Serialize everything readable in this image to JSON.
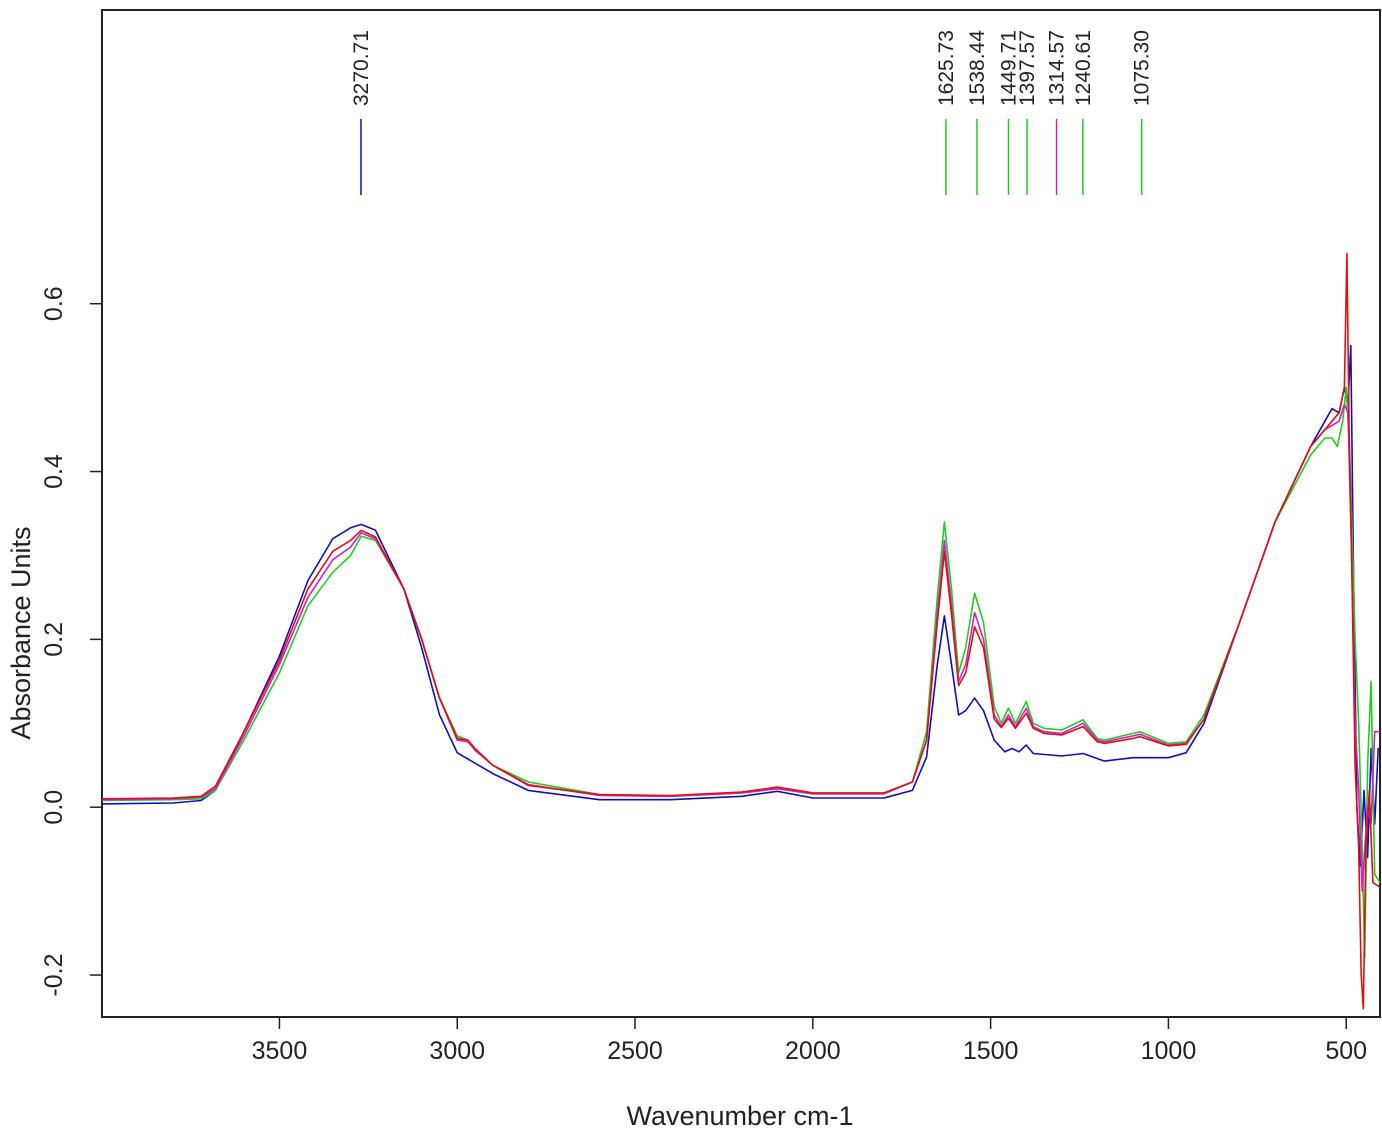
{
  "chart_data": {
    "type": "line",
    "title": "",
    "xlabel": "Wavenumber cm-1",
    "ylabel": "Absorbance Units",
    "xlim": [
      3999,
      405
    ],
    "ylim": [
      -0.25,
      0.95
    ],
    "x_reversed": true,
    "grid": false,
    "x_ticks": [
      3500,
      3000,
      2500,
      2000,
      1500,
      1000,
      500
    ],
    "y_ticks": [
      -0.2,
      0.0,
      0.2,
      0.4,
      0.6
    ],
    "y_tick_labels": [
      "-0.2",
      "0.0",
      "0.2",
      "0.4",
      "0.6"
    ],
    "series": [
      {
        "color": "#1010bb",
        "points": [
          [
            3999,
            0.004
          ],
          [
            3800,
            0.005
          ],
          [
            3720,
            0.008
          ],
          [
            3680,
            0.02
          ],
          [
            3600,
            0.09
          ],
          [
            3500,
            0.18
          ],
          [
            3420,
            0.27
          ],
          [
            3350,
            0.32
          ],
          [
            3300,
            0.333
          ],
          [
            3270,
            0.337
          ],
          [
            3230,
            0.33
          ],
          [
            3150,
            0.26
          ],
          [
            3100,
            0.19
          ],
          [
            3050,
            0.11
          ],
          [
            3000,
            0.065
          ],
          [
            2980,
            0.06
          ],
          [
            2900,
            0.04
          ],
          [
            2800,
            0.02
          ],
          [
            2600,
            0.009
          ],
          [
            2400,
            0.009
          ],
          [
            2200,
            0.013
          ],
          [
            2100,
            0.019
          ],
          [
            2000,
            0.011
          ],
          [
            1800,
            0.011
          ],
          [
            1720,
            0.02
          ],
          [
            1680,
            0.06
          ],
          [
            1650,
            0.17
          ],
          [
            1630,
            0.228
          ],
          [
            1610,
            0.17
          ],
          [
            1590,
            0.11
          ],
          [
            1570,
            0.115
          ],
          [
            1545,
            0.13
          ],
          [
            1520,
            0.115
          ],
          [
            1490,
            0.08
          ],
          [
            1460,
            0.066
          ],
          [
            1440,
            0.07
          ],
          [
            1420,
            0.066
          ],
          [
            1400,
            0.074
          ],
          [
            1380,
            0.064
          ],
          [
            1300,
            0.061
          ],
          [
            1240,
            0.064
          ],
          [
            1180,
            0.055
          ],
          [
            1100,
            0.059
          ],
          [
            1000,
            0.059
          ],
          [
            950,
            0.065
          ],
          [
            900,
            0.1
          ],
          [
            800,
            0.22
          ],
          [
            700,
            0.34
          ],
          [
            600,
            0.43
          ],
          [
            560,
            0.46
          ],
          [
            540,
            0.475
          ],
          [
            520,
            0.47
          ],
          [
            505,
            0.5
          ],
          [
            495,
            0.48
          ],
          [
            487,
            0.55
          ],
          [
            480,
            0.3
          ],
          [
            470,
            0.0
          ],
          [
            460,
            -0.07
          ],
          [
            450,
            0.02
          ],
          [
            440,
            -0.06
          ],
          [
            430,
            0.07
          ],
          [
            420,
            -0.02
          ],
          [
            410,
            0.07
          ],
          [
            405,
            0.07
          ]
        ]
      },
      {
        "color": "#22cc22",
        "points": [
          [
            3999,
            0.008
          ],
          [
            3800,
            0.009
          ],
          [
            3720,
            0.01
          ],
          [
            3680,
            0.02
          ],
          [
            3600,
            0.08
          ],
          [
            3500,
            0.16
          ],
          [
            3420,
            0.24
          ],
          [
            3350,
            0.28
          ],
          [
            3300,
            0.3
          ],
          [
            3270,
            0.323
          ],
          [
            3230,
            0.318
          ],
          [
            3150,
            0.26
          ],
          [
            3100,
            0.2
          ],
          [
            3050,
            0.13
          ],
          [
            3000,
            0.085
          ],
          [
            2970,
            0.08
          ],
          [
            2950,
            0.068
          ],
          [
            2900,
            0.05
          ],
          [
            2800,
            0.03
          ],
          [
            2600,
            0.015
          ],
          [
            2400,
            0.013
          ],
          [
            2200,
            0.017
          ],
          [
            2100,
            0.022
          ],
          [
            2000,
            0.016
          ],
          [
            1800,
            0.016
          ],
          [
            1720,
            0.03
          ],
          [
            1680,
            0.09
          ],
          [
            1650,
            0.25
          ],
          [
            1630,
            0.34
          ],
          [
            1610,
            0.26
          ],
          [
            1590,
            0.16
          ],
          [
            1570,
            0.19
          ],
          [
            1545,
            0.255
          ],
          [
            1520,
            0.22
          ],
          [
            1490,
            0.12
          ],
          [
            1470,
            0.1
          ],
          [
            1450,
            0.118
          ],
          [
            1430,
            0.1
          ],
          [
            1400,
            0.126
          ],
          [
            1380,
            0.1
          ],
          [
            1350,
            0.094
          ],
          [
            1300,
            0.092
          ],
          [
            1240,
            0.104
          ],
          [
            1200,
            0.082
          ],
          [
            1180,
            0.08
          ],
          [
            1100,
            0.088
          ],
          [
            1080,
            0.09
          ],
          [
            1000,
            0.076
          ],
          [
            950,
            0.078
          ],
          [
            900,
            0.11
          ],
          [
            800,
            0.22
          ],
          [
            700,
            0.34
          ],
          [
            600,
            0.42
          ],
          [
            560,
            0.44
          ],
          [
            540,
            0.44
          ],
          [
            525,
            0.43
          ],
          [
            510,
            0.46
          ],
          [
            500,
            0.5
          ],
          [
            492,
            0.44
          ],
          [
            485,
            0.35
          ],
          [
            475,
            0.2
          ],
          [
            465,
            0.1
          ],
          [
            455,
            -0.05
          ],
          [
            448,
            -0.18
          ],
          [
            440,
            0.05
          ],
          [
            430,
            0.15
          ],
          [
            420,
            -0.08
          ],
          [
            405,
            -0.09
          ]
        ]
      },
      {
        "color": "#cc22cc",
        "points": [
          [
            3999,
            0.009
          ],
          [
            3800,
            0.01
          ],
          [
            3720,
            0.012
          ],
          [
            3680,
            0.022
          ],
          [
            3600,
            0.085
          ],
          [
            3500,
            0.17
          ],
          [
            3420,
            0.25
          ],
          [
            3350,
            0.295
          ],
          [
            3300,
            0.31
          ],
          [
            3270,
            0.327
          ],
          [
            3230,
            0.32
          ],
          [
            3150,
            0.26
          ],
          [
            3100,
            0.2
          ],
          [
            3050,
            0.13
          ],
          [
            3000,
            0.08
          ],
          [
            2970,
            0.078
          ],
          [
            2950,
            0.068
          ],
          [
            2900,
            0.05
          ],
          [
            2800,
            0.027
          ],
          [
            2600,
            0.014
          ],
          [
            2400,
            0.013
          ],
          [
            2200,
            0.017
          ],
          [
            2100,
            0.022
          ],
          [
            2000,
            0.016
          ],
          [
            1800,
            0.016
          ],
          [
            1720,
            0.03
          ],
          [
            1680,
            0.08
          ],
          [
            1650,
            0.23
          ],
          [
            1630,
            0.318
          ],
          [
            1610,
            0.24
          ],
          [
            1590,
            0.15
          ],
          [
            1570,
            0.17
          ],
          [
            1545,
            0.232
          ],
          [
            1520,
            0.2
          ],
          [
            1490,
            0.11
          ],
          [
            1470,
            0.096
          ],
          [
            1450,
            0.11
          ],
          [
            1430,
            0.096
          ],
          [
            1400,
            0.118
          ],
          [
            1380,
            0.096
          ],
          [
            1350,
            0.09
          ],
          [
            1300,
            0.088
          ],
          [
            1240,
            0.1
          ],
          [
            1200,
            0.08
          ],
          [
            1180,
            0.078
          ],
          [
            1100,
            0.085
          ],
          [
            1080,
            0.087
          ],
          [
            1000,
            0.074
          ],
          [
            950,
            0.076
          ],
          [
            900,
            0.105
          ],
          [
            800,
            0.22
          ],
          [
            700,
            0.34
          ],
          [
            600,
            0.43
          ],
          [
            560,
            0.45
          ],
          [
            540,
            0.455
          ],
          [
            520,
            0.46
          ],
          [
            505,
            0.48
          ],
          [
            495,
            0.47
          ],
          [
            485,
            0.3
          ],
          [
            475,
            0.1
          ],
          [
            465,
            0.02
          ],
          [
            455,
            -0.1
          ],
          [
            448,
            -0.05
          ],
          [
            440,
            0.0
          ],
          [
            430,
            -0.02
          ],
          [
            420,
            0.09
          ],
          [
            405,
            0.09
          ]
        ]
      },
      {
        "color": "#dd1111",
        "points": [
          [
            3999,
            0.01
          ],
          [
            3800,
            0.011
          ],
          [
            3720,
            0.013
          ],
          [
            3680,
            0.025
          ],
          [
            3600,
            0.09
          ],
          [
            3500,
            0.175
          ],
          [
            3420,
            0.26
          ],
          [
            3350,
            0.305
          ],
          [
            3300,
            0.318
          ],
          [
            3270,
            0.33
          ],
          [
            3230,
            0.322
          ],
          [
            3150,
            0.26
          ],
          [
            3100,
            0.2
          ],
          [
            3050,
            0.13
          ],
          [
            3000,
            0.082
          ],
          [
            2970,
            0.08
          ],
          [
            2950,
            0.07
          ],
          [
            2900,
            0.05
          ],
          [
            2800,
            0.026
          ],
          [
            2600,
            0.015
          ],
          [
            2400,
            0.014
          ],
          [
            2200,
            0.018
          ],
          [
            2100,
            0.024
          ],
          [
            2000,
            0.017
          ],
          [
            1800,
            0.017
          ],
          [
            1720,
            0.03
          ],
          [
            1680,
            0.08
          ],
          [
            1650,
            0.22
          ],
          [
            1630,
            0.305
          ],
          [
            1610,
            0.23
          ],
          [
            1590,
            0.145
          ],
          [
            1570,
            0.16
          ],
          [
            1545,
            0.215
          ],
          [
            1520,
            0.19
          ],
          [
            1490,
            0.105
          ],
          [
            1470,
            0.095
          ],
          [
            1450,
            0.106
          ],
          [
            1430,
            0.094
          ],
          [
            1400,
            0.112
          ],
          [
            1380,
            0.094
          ],
          [
            1350,
            0.088
          ],
          [
            1300,
            0.086
          ],
          [
            1240,
            0.096
          ],
          [
            1200,
            0.078
          ],
          [
            1180,
            0.076
          ],
          [
            1100,
            0.082
          ],
          [
            1080,
            0.084
          ],
          [
            1000,
            0.073
          ],
          [
            950,
            0.075
          ],
          [
            900,
            0.105
          ],
          [
            800,
            0.22
          ],
          [
            700,
            0.34
          ],
          [
            600,
            0.43
          ],
          [
            560,
            0.45
          ],
          [
            540,
            0.46
          ],
          [
            520,
            0.47
          ],
          [
            505,
            0.5
          ],
          [
            498,
            0.66
          ],
          [
            492,
            0.45
          ],
          [
            485,
            0.3
          ],
          [
            475,
            0.05
          ],
          [
            465,
            -0.05
          ],
          [
            458,
            -0.2
          ],
          [
            452,
            -0.24
          ],
          [
            445,
            -0.05
          ],
          [
            435,
            0.02
          ],
          [
            425,
            -0.09
          ],
          [
            405,
            -0.095
          ]
        ]
      }
    ],
    "peaks": [
      {
        "label": "3270.71",
        "x": 3270.71,
        "color": "#1010bb"
      },
      {
        "label": "1625.73",
        "x": 1625.73,
        "color": "#22cc22"
      },
      {
        "label": "1538.44",
        "x": 1538.44,
        "color": "#22cc22"
      },
      {
        "label": "1449.71",
        "x": 1449.71,
        "color": "#22cc22"
      },
      {
        "label": "1397.57",
        "x": 1397.57,
        "color": "#22cc22"
      },
      {
        "label": "1314.57",
        "x": 1314.57,
        "color": "#cc22cc"
      },
      {
        "label": "1240.61",
        "x": 1240.61,
        "color": "#22cc22"
      },
      {
        "label": "1075.30",
        "x": 1075.3,
        "color": "#22cc22"
      }
    ]
  }
}
